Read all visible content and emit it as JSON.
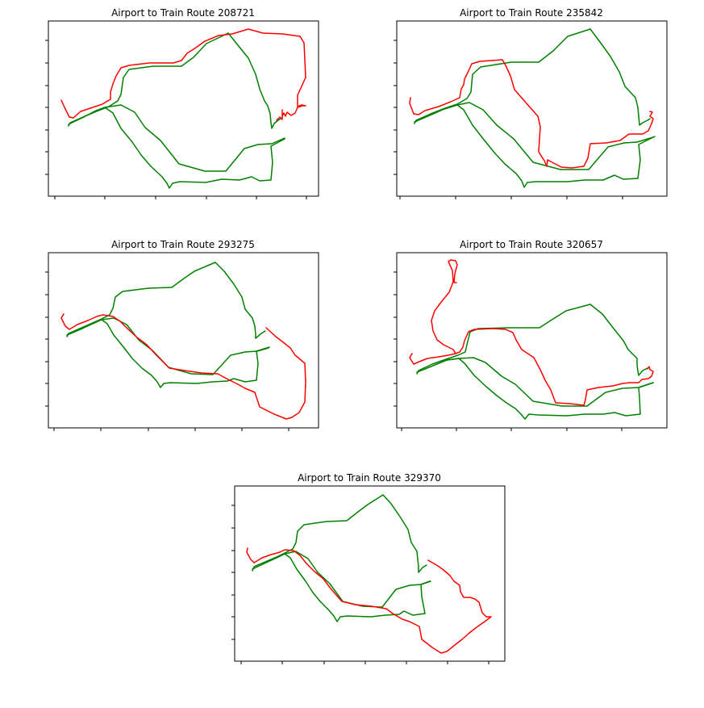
{
  "chart_data": [
    {
      "type": "line",
      "title": "Airport to Train Route 208721",
      "xlabel": "",
      "ylabel": "",
      "grid": false,
      "tick_labels_visible": false,
      "colors": {
        "transit_network": "#008000",
        "route": "#ff0000"
      }
    },
    {
      "type": "line",
      "title": "Airport to Train Route 235842",
      "xlabel": "",
      "ylabel": "",
      "grid": false,
      "tick_labels_visible": false,
      "colors": {
        "transit_network": "#008000",
        "route": "#ff0000"
      }
    },
    {
      "type": "line",
      "title": "Airport to Train Route 293275",
      "xlabel": "",
      "ylabel": "",
      "grid": false,
      "tick_labels_visible": false,
      "colors": {
        "transit_network": "#008000",
        "route": "#ff0000"
      }
    },
    {
      "type": "line",
      "title": "Airport to Train Route 320657",
      "xlabel": "",
      "ylabel": "",
      "grid": false,
      "tick_labels_visible": false,
      "colors": {
        "transit_network": "#008000",
        "route": "#ff0000"
      }
    },
    {
      "type": "line",
      "title": "Airport to Train Route 329370",
      "xlabel": "",
      "ylabel": "",
      "grid": false,
      "tick_labels_visible": false,
      "colors": {
        "transit_network": "#008000",
        "route": "#ff0000"
      }
    }
  ]
}
